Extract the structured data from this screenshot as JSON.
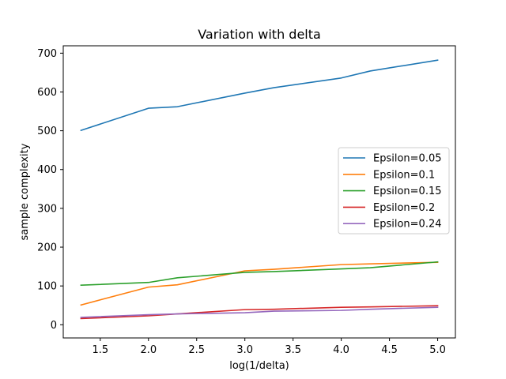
{
  "chart_data": {
    "type": "line",
    "title": "Variation with delta",
    "xlabel": "log(1/delta)",
    "ylabel": "sample complexity",
    "xlim": [
      1.116,
      5.184
    ],
    "ylim": [
      -34,
      719
    ],
    "xticks": [
      1.5,
      2.0,
      2.5,
      3.0,
      3.5,
      4.0,
      4.5,
      5.0
    ],
    "xtick_labels": [
      "1.5",
      "2.0",
      "2.5",
      "3.0",
      "3.5",
      "4.0",
      "4.5",
      "5.0"
    ],
    "yticks": [
      0,
      100,
      200,
      300,
      400,
      500,
      600,
      700
    ],
    "ytick_labels": [
      "0",
      "100",
      "200",
      "300",
      "400",
      "500",
      "600",
      "700"
    ],
    "grid": false,
    "legend": "center-right",
    "x": [
      1.3,
      2.0,
      2.3,
      3.0,
      3.3,
      4.0,
      4.3,
      5.0
    ],
    "series": [
      {
        "name": "Epsilon=0.05",
        "color": "#1f77b4",
        "values": [
          501,
          558,
          562,
          597,
          611,
          636,
          654,
          682
        ]
      },
      {
        "name": "Epsilon=0.1",
        "color": "#ff7f0e",
        "values": [
          51,
          97,
          103,
          139,
          143,
          155,
          157,
          161
        ]
      },
      {
        "name": "Epsilon=0.15",
        "color": "#2ca02c",
        "values": [
          102,
          109,
          121,
          135,
          137,
          144,
          147,
          162
        ]
      },
      {
        "name": "Epsilon=0.2",
        "color": "#d62728",
        "values": [
          16,
          23,
          28,
          39,
          40,
          45,
          46,
          49
        ]
      },
      {
        "name": "Epsilon=0.24",
        "color": "#9467bd",
        "values": [
          19,
          26,
          28,
          31,
          35,
          37,
          40,
          45
        ]
      }
    ]
  }
}
